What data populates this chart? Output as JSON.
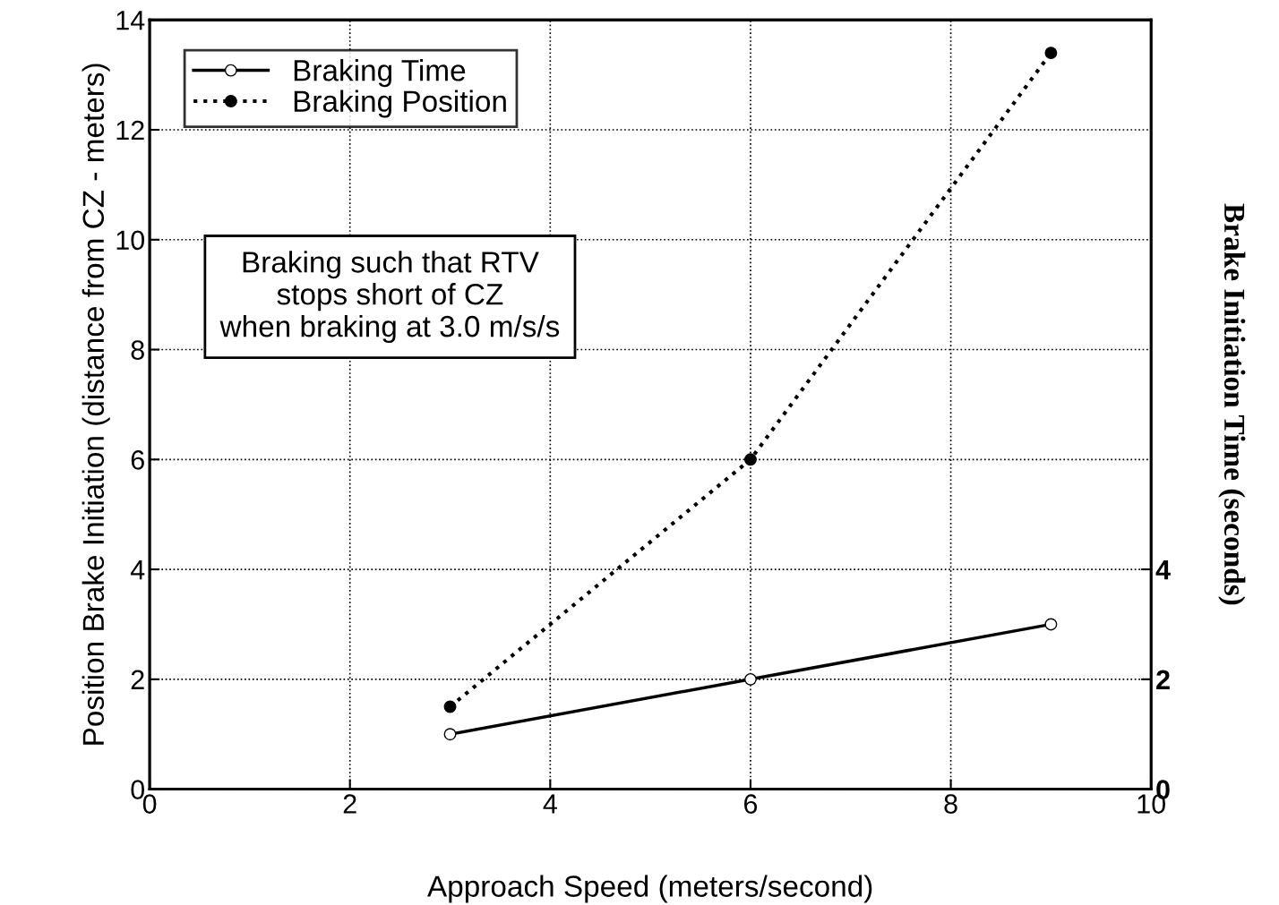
{
  "chart_data": {
    "type": "line",
    "xlabel": "Approach Speed (meters/second)",
    "ylabel": "Position Brake Initiation (distance from CZ - meters)",
    "y2label": "Brake Initiation Time (seconds)",
    "x": [
      3,
      6,
      9
    ],
    "series": [
      {
        "name": "Braking Time",
        "color": "#000000",
        "values": [
          1,
          2,
          3
        ],
        "axis": "y2",
        "line_style": "solid",
        "marker": "circle"
      },
      {
        "name": "Braking Position",
        "color": "#000000",
        "values": [
          1.5,
          6,
          13.4
        ],
        "line_style": "dotted",
        "marker": "circle"
      }
    ],
    "xlim": [
      0,
      10
    ],
    "xticks": [
      0,
      2,
      4,
      6,
      8,
      10
    ],
    "ylim": [
      0,
      14
    ],
    "yticks": [
      0,
      2,
      4,
      6,
      8,
      10,
      12,
      14
    ],
    "y2lim": [
      0,
      14
    ],
    "y2ticks": [
      0,
      2,
      4
    ],
    "annotations": [
      "Braking such that RTV\nstops short of CZ\nwhen braking at 3.0 m/s/s"
    ],
    "grid": true,
    "legend": "top left"
  }
}
